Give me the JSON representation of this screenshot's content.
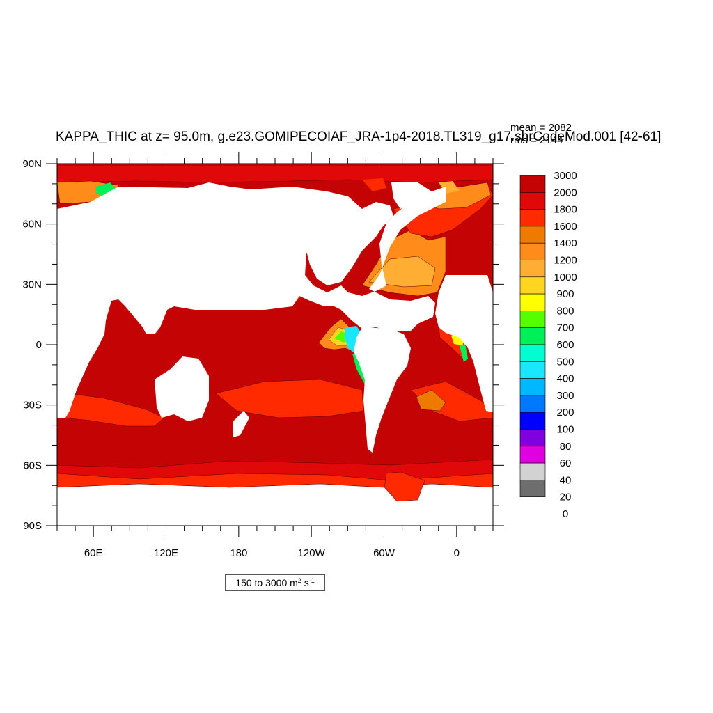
{
  "title": "KAPPA_THIC at z=  95.0m, g.e23.GOMIPECOIAF_JRA-1p4-2018.TL319_g17.shrCodeMod.001 [42-61]",
  "stats": {
    "mean": "mean = 2082",
    "rms": "rms = 2144"
  },
  "range_label": {
    "text": "150 to 3000 m",
    "sup1": "2",
    "mid": " s",
    "sup2": "-1"
  },
  "map": {
    "lon_range": [
      30,
      390
    ],
    "lat_range": [
      -90,
      90
    ],
    "lat_ticks": [
      "90N",
      "60N",
      "30N",
      "0",
      "30S",
      "60S",
      "90S"
    ],
    "lon_ticks": [
      "60E",
      "120E",
      "180",
      "120W",
      "60W",
      "0"
    ]
  },
  "colorbar": {
    "levels": [
      "3000",
      "2000",
      "1800",
      "1600",
      "1400",
      "1200",
      "1000",
      "900",
      "800",
      "700",
      "600",
      "500",
      "400",
      "300",
      "200",
      "100",
      "80",
      "60",
      "40",
      "20",
      "0"
    ],
    "colors": [
      "#c40404",
      "#e00808",
      "#ff2a00",
      "#ef7a00",
      "#ff8c1a",
      "#ffad33",
      "#ffd51f",
      "#ffff00",
      "#55ff00",
      "#00f05a",
      "#00ffd0",
      "#1ae6ff",
      "#00b8ff",
      "#0078ff",
      "#0000ff",
      "#8000e0",
      "#e000e0",
      "#d2d2d2",
      "#6e6e6e"
    ]
  }
}
